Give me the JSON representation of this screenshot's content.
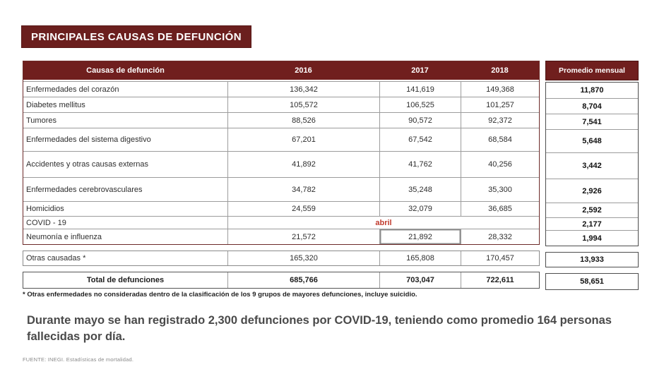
{
  "title": "PRINCIPALES CAUSAS DE DEFUNCIÓN",
  "colors": {
    "maroon": "#701f1e",
    "accent_red": "#c13b2e"
  },
  "chart_data": {
    "type": "table",
    "title": "PRINCIPALES CAUSAS DE DEFUNCIÓN",
    "columns": [
      "Causas de defunción",
      "2016",
      "2017",
      "2018",
      "Promedio mensual"
    ],
    "rows": [
      [
        "Enfermedades del corazón",
        "136,342",
        "141,619",
        "149,368",
        "11,870"
      ],
      [
        "Diabetes mellitus",
        "105,572",
        "106,525",
        "101,257",
        "8,704"
      ],
      [
        "Tumores",
        "88,526",
        "90,572",
        "92,372",
        "7,541"
      ],
      [
        "Enfermedades del sistema digestivo",
        "67,201",
        "67,542",
        "68,584",
        "5,648"
      ],
      [
        "Accidentes y otras causas externas",
        "41,892",
        "41,762",
        "40,256",
        "3,442"
      ],
      [
        "Enfermedades cerebrovasculares",
        "34,782",
        "35,248",
        "35,300",
        "2,926"
      ],
      [
        "Homicidios",
        "24,559",
        "32,079",
        "36,685",
        "2,592"
      ],
      [
        "COVID - 19",
        "abril",
        "",
        "",
        "2,177"
      ],
      [
        "Neumonía e influenza",
        "21,572",
        "21,892",
        "28,332",
        "1,994"
      ],
      [
        "Otras causadas *",
        "165,320",
        "165,808",
        "170,457",
        "13,933"
      ],
      [
        "Total de defunciones",
        "685,766",
        "703,047",
        "722,611",
        "58,651"
      ]
    ]
  },
  "footnote": "* Otras enfermedades no consideradas dentro de la clasificación de los 9 grupos de mayores defunciones, incluye suicidio.",
  "summary": "Durante mayo se han registrado 2,300 defunciones por COVID-19, teniendo como promedio 164 personas fallecidas por día.",
  "source": "FUENTE: INEGI. Estadísticas de mortalidad."
}
